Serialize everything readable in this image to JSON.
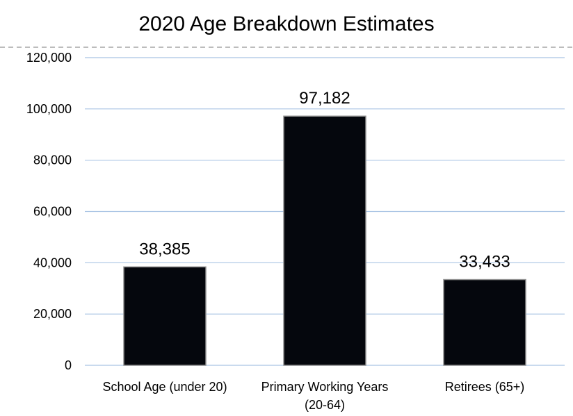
{
  "chart_data": {
    "type": "bar",
    "title": "2020 Age Breakdown Estimates",
    "categories": [
      [
        "School Age (under 20)"
      ],
      [
        "Primary Working Years",
        "(20-64)"
      ],
      [
        "Retirees (65+)"
      ]
    ],
    "values": [
      38385,
      97182,
      33433
    ],
    "data_labels": [
      "38,385",
      "97,182",
      "33,433"
    ],
    "yticks": [
      0,
      20000,
      40000,
      60000,
      80000,
      100000,
      120000
    ],
    "ytick_labels": [
      "0",
      "20,000",
      "40,000",
      "60,000",
      "80,000",
      "100,000",
      "120,000"
    ],
    "ylim": [
      0,
      120000
    ],
    "xlabel": "",
    "ylabel": "",
    "grid": true,
    "legend": "none",
    "colors": {
      "bar": "#05070d",
      "bar_edge": "#8f8f8f",
      "grid": "#a9c4e4",
      "top_border": "#a6a6a6"
    }
  }
}
